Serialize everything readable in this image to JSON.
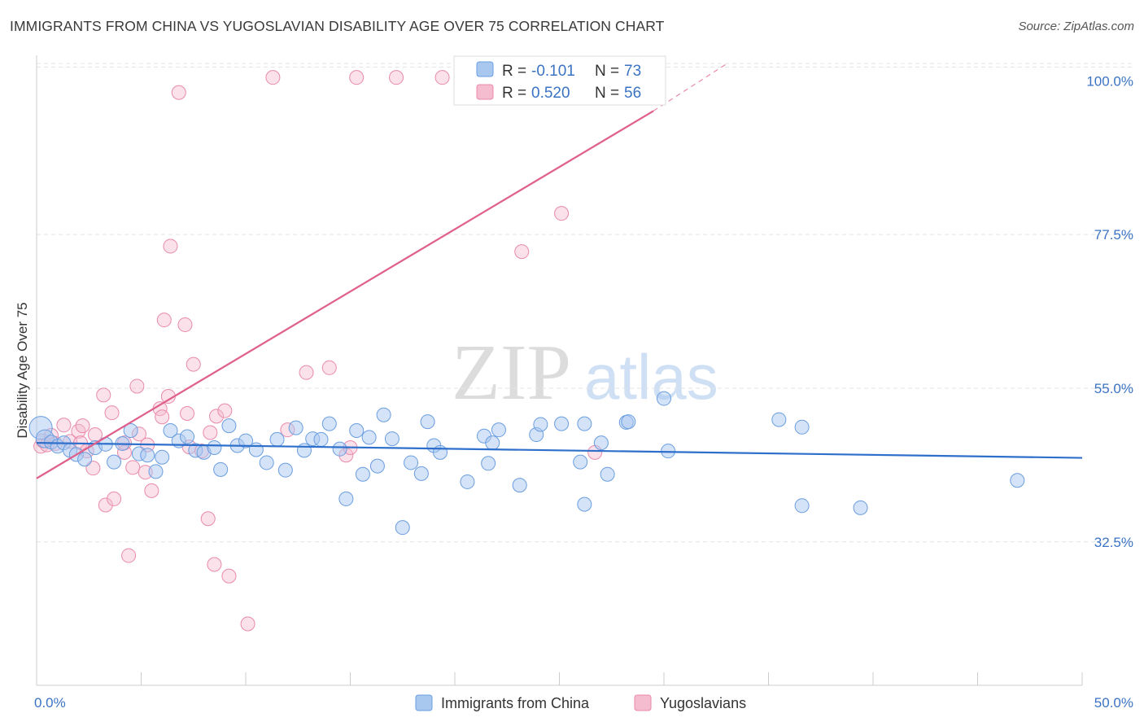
{
  "title": "IMMIGRANTS FROM CHINA VS YUGOSLAVIAN DISABILITY AGE OVER 75 CORRELATION CHART",
  "source": "Source: ZipAtlas.com",
  "watermark": {
    "zip": "ZIP",
    "atlas": "atlas"
  },
  "colors": {
    "china_fill": "#a9c8f0",
    "china_stroke": "#6a9ee0",
    "china_line": "#2d6fcb",
    "yugo_fill": "#f5bcd0",
    "yugo_stroke": "#e98aab",
    "yugo_line": "#e0608c",
    "accent_text": "#3b73c4",
    "grid": "#e3e3e3"
  },
  "legend": {
    "rows": [
      {
        "r_label": "R =",
        "r_value": "-0.101",
        "n_label": "N =",
        "n_value": "73"
      },
      {
        "r_label": "R =",
        "r_value": "0.520",
        "n_label": "N =",
        "n_value": "56"
      }
    ]
  },
  "chart_data": {
    "type": "scatter",
    "xlabel": "",
    "ylabel": "Disability Age Over 75",
    "xlim": [
      0,
      50
    ],
    "ylim": [
      11.5,
      103.5
    ],
    "x_tick_labels": [
      "0.0%",
      "50.0%"
    ],
    "y_ticks": [
      32.5,
      55.0,
      77.5,
      100.0
    ],
    "y_tick_labels": [
      "32.5%",
      "55.0%",
      "77.5%",
      "100.0%"
    ],
    "grid": true,
    "series": [
      {
        "name": "Immigrants from China",
        "trend": {
          "x0": 0,
          "y0": 47.0,
          "x1": 50,
          "y1": 44.8
        },
        "points": [
          [
            0.2,
            49.2
          ],
          [
            0.4,
            47.6
          ],
          [
            0.7,
            47.1
          ],
          [
            1.0,
            46.5
          ],
          [
            1.3,
            47.0
          ],
          [
            1.6,
            45.9
          ],
          [
            1.9,
            45.3
          ],
          [
            2.3,
            44.6
          ],
          [
            2.8,
            46.3
          ],
          [
            3.3,
            46.8
          ],
          [
            3.7,
            44.2
          ],
          [
            4.1,
            46.9
          ],
          [
            4.5,
            48.8
          ],
          [
            4.9,
            45.4
          ],
          [
            5.3,
            45.2
          ],
          [
            5.7,
            42.8
          ],
          [
            6.0,
            44.9
          ],
          [
            6.4,
            48.8
          ],
          [
            6.8,
            47.3
          ],
          [
            7.2,
            47.9
          ],
          [
            7.6,
            45.9
          ],
          [
            8.0,
            45.6
          ],
          [
            8.5,
            46.3
          ],
          [
            8.8,
            43.1
          ],
          [
            9.2,
            49.5
          ],
          [
            9.6,
            46.6
          ],
          [
            10.0,
            47.3
          ],
          [
            10.5,
            46.0
          ],
          [
            11.0,
            44.1
          ],
          [
            11.5,
            47.5
          ],
          [
            11.9,
            43.0
          ],
          [
            12.4,
            49.2
          ],
          [
            12.8,
            45.9
          ],
          [
            13.2,
            47.6
          ],
          [
            13.6,
            47.5
          ],
          [
            14.0,
            49.8
          ],
          [
            14.5,
            46.1
          ],
          [
            14.8,
            38.8
          ],
          [
            15.3,
            48.8
          ],
          [
            15.6,
            42.4
          ],
          [
            15.9,
            47.8
          ],
          [
            16.3,
            43.6
          ],
          [
            16.6,
            51.1
          ],
          [
            17.0,
            47.6
          ],
          [
            17.5,
            34.6
          ],
          [
            17.9,
            44.1
          ],
          [
            18.4,
            42.5
          ],
          [
            18.7,
            50.1
          ],
          [
            19.0,
            46.6
          ],
          [
            19.3,
            45.6
          ],
          [
            20.6,
            41.3
          ],
          [
            21.4,
            48.0
          ],
          [
            21.6,
            44.0
          ],
          [
            21.8,
            47.0
          ],
          [
            22.1,
            48.9
          ],
          [
            23.1,
            40.8
          ],
          [
            23.9,
            48.2
          ],
          [
            24.1,
            49.7
          ],
          [
            25.1,
            49.8
          ],
          [
            26.0,
            44.2
          ],
          [
            26.2,
            38.0
          ],
          [
            26.2,
            49.8
          ],
          [
            27.0,
            47.0
          ],
          [
            27.3,
            42.4
          ],
          [
            28.2,
            50.0
          ],
          [
            28.3,
            50.1
          ],
          [
            30.0,
            53.5
          ],
          [
            30.2,
            45.8
          ],
          [
            35.5,
            50.4
          ],
          [
            36.6,
            37.8
          ],
          [
            36.6,
            49.3
          ],
          [
            39.4,
            37.5
          ],
          [
            46.9,
            41.5
          ]
        ]
      },
      {
        "name": "Yugoslavians",
        "trend": {
          "x0": 0,
          "y0": 41.8,
          "x1": 29.5,
          "y1": 95.6,
          "x1_dashed": 33,
          "y1_dashed": 102.5
        },
        "points": [
          [
            0.2,
            46.5
          ],
          [
            0.3,
            47.3
          ],
          [
            0.5,
            46.7
          ],
          [
            0.7,
            48.1
          ],
          [
            0.9,
            46.9
          ],
          [
            1.3,
            49.6
          ],
          [
            1.6,
            47.2
          ],
          [
            2.0,
            48.7
          ],
          [
            2.1,
            47.0
          ],
          [
            2.2,
            49.5
          ],
          [
            2.4,
            45.8
          ],
          [
            2.7,
            43.3
          ],
          [
            2.8,
            48.2
          ],
          [
            3.2,
            54.0
          ],
          [
            3.3,
            37.9
          ],
          [
            3.6,
            51.4
          ],
          [
            3.7,
            38.8
          ],
          [
            4.2,
            45.6
          ],
          [
            4.2,
            47.0
          ],
          [
            4.4,
            30.5
          ],
          [
            4.6,
            43.4
          ],
          [
            4.8,
            55.3
          ],
          [
            4.9,
            48.3
          ],
          [
            5.2,
            42.7
          ],
          [
            5.3,
            46.7
          ],
          [
            5.5,
            40.0
          ],
          [
            5.9,
            52.0
          ],
          [
            6.0,
            50.8
          ],
          [
            6.1,
            65.0
          ],
          [
            6.3,
            53.8
          ],
          [
            6.4,
            75.8
          ],
          [
            6.8,
            98.3
          ],
          [
            7.1,
            64.3
          ],
          [
            7.2,
            51.3
          ],
          [
            7.3,
            46.4
          ],
          [
            7.5,
            58.5
          ],
          [
            7.9,
            45.8
          ],
          [
            8.2,
            35.9
          ],
          [
            8.3,
            48.5
          ],
          [
            8.5,
            29.2
          ],
          [
            8.6,
            50.9
          ],
          [
            9.0,
            51.7
          ],
          [
            9.2,
            27.5
          ],
          [
            10.1,
            20.5
          ],
          [
            11.3,
            100.5
          ],
          [
            12.0,
            48.9
          ],
          [
            12.9,
            57.3
          ],
          [
            14.0,
            58.0
          ],
          [
            14.8,
            45.2
          ],
          [
            15.0,
            46.3
          ],
          [
            15.3,
            100.5
          ],
          [
            17.2,
            100.5
          ],
          [
            19.4,
            100.5
          ],
          [
            23.2,
            75.0
          ],
          [
            25.1,
            80.6
          ],
          [
            26.7,
            45.6
          ]
        ]
      }
    ]
  },
  "bottom_legend": [
    "Immigrants from China",
    "Yugoslavians"
  ]
}
